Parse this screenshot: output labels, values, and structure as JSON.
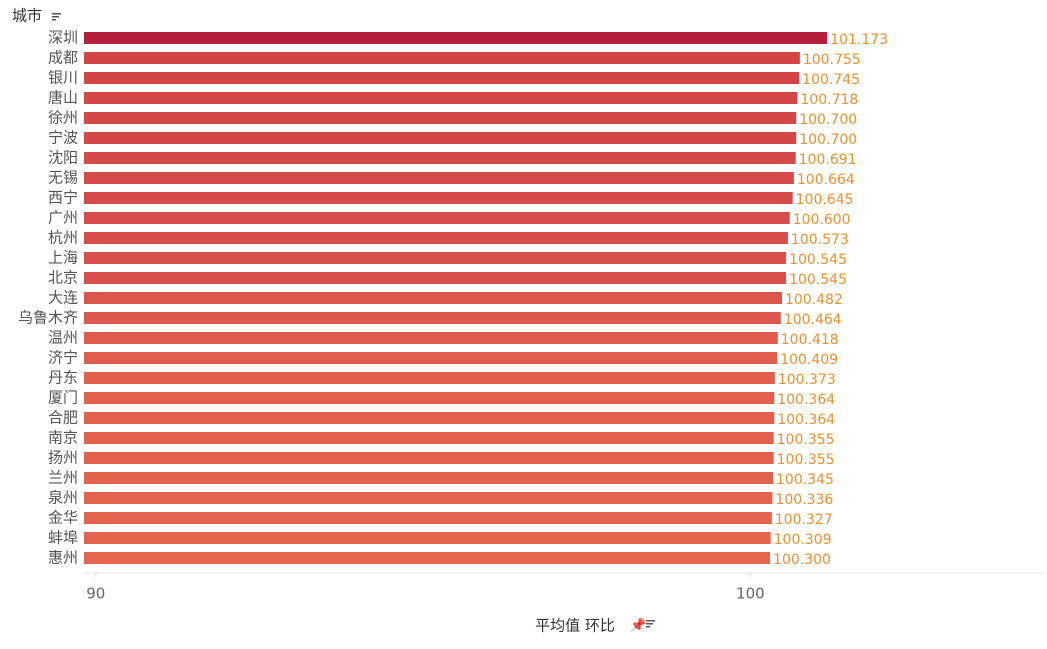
{
  "chart_data": {
    "type": "bar",
    "y_header": "城市",
    "x_title": "平均值 环比",
    "categories": [
      "深圳",
      "成都",
      "银川",
      "唐山",
      "徐州",
      "宁波",
      "沈阳",
      "无锡",
      "西宁",
      "广州",
      "杭州",
      "上海",
      "北京",
      "大连",
      "乌鲁木齐",
      "温州",
      "济宁",
      "丹东",
      "厦门",
      "合肥",
      "南京",
      "扬州",
      "兰州",
      "泉州",
      "金华",
      "蚌埠",
      "惠州"
    ],
    "values": [
      101.173,
      100.755,
      100.745,
      100.718,
      100.7,
      100.7,
      100.691,
      100.664,
      100.645,
      100.6,
      100.573,
      100.545,
      100.545,
      100.482,
      100.464,
      100.418,
      100.409,
      100.373,
      100.364,
      100.364,
      100.355,
      100.355,
      100.345,
      100.336,
      100.327,
      100.309,
      100.3
    ],
    "value_labels": [
      "101.173",
      "100.755",
      "100.745",
      "100.718",
      "100.700",
      "100.700",
      "100.691",
      "100.664",
      "100.645",
      "100.600",
      "100.573",
      "100.545",
      "100.545",
      "100.482",
      "100.464",
      "100.418",
      "100.409",
      "100.373",
      "100.364",
      "100.364",
      "100.355",
      "100.355",
      "100.345",
      "100.336",
      "100.327",
      "100.309",
      "100.300"
    ],
    "colors": [
      "#b41f3c",
      "#d34545",
      "#d34545",
      "#d44646",
      "#d44747",
      "#d44747",
      "#d54848",
      "#d64949",
      "#d64a4a",
      "#d84c4b",
      "#d94e4b",
      "#da504c",
      "#da504c",
      "#dd564c",
      "#de574c",
      "#e05b4c",
      "#e05c4c",
      "#e25f4c",
      "#e2604c",
      "#e2604c",
      "#e3614c",
      "#e3614c",
      "#e3624c",
      "#e4634c",
      "#e4634c",
      "#e5654c",
      "#e5664c"
    ],
    "label_color": "#f28e2b",
    "xlim": [
      89.82,
      104.5
    ],
    "xticks": [
      90,
      100
    ]
  }
}
